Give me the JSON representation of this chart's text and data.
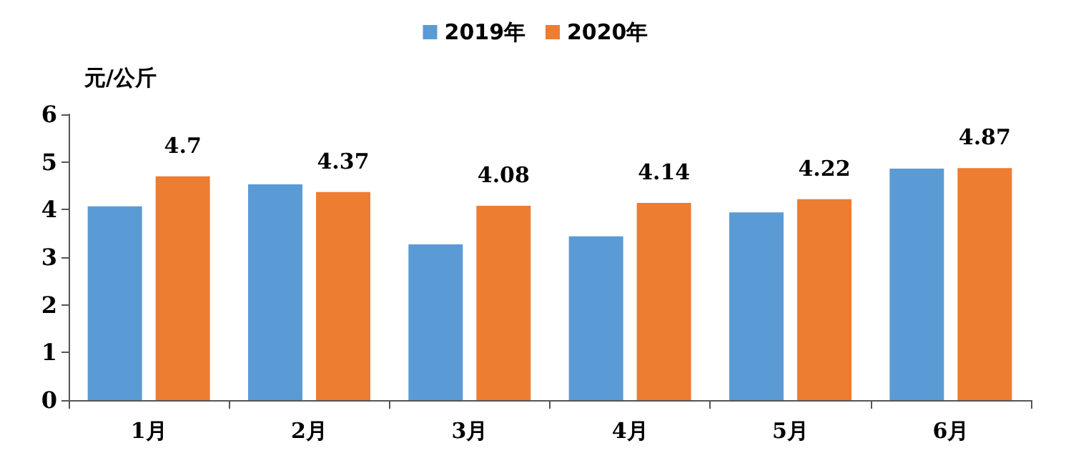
{
  "chart_data": {
    "type": "bar",
    "ylabel": "元/公斤",
    "categories": [
      "1月",
      "2月",
      "3月",
      "4月",
      "5月",
      "6月"
    ],
    "series": [
      {
        "name": "2019年",
        "color": "#5b9bd5",
        "values": [
          4.07,
          4.53,
          3.27,
          3.44,
          3.94,
          4.86
        ]
      },
      {
        "name": "2020年",
        "color": "#ed7d31",
        "values": [
          4.7,
          4.37,
          4.08,
          4.14,
          4.22,
          4.87
        ],
        "value_labels": [
          "4.7",
          "4.37",
          "4.08",
          "4.14",
          "4.22",
          "4.87"
        ]
      }
    ],
    "ylim": [
      0,
      6
    ],
    "yticks": [
      0,
      1,
      2,
      3,
      4,
      5,
      6
    ],
    "grid": false,
    "legend": "top"
  }
}
